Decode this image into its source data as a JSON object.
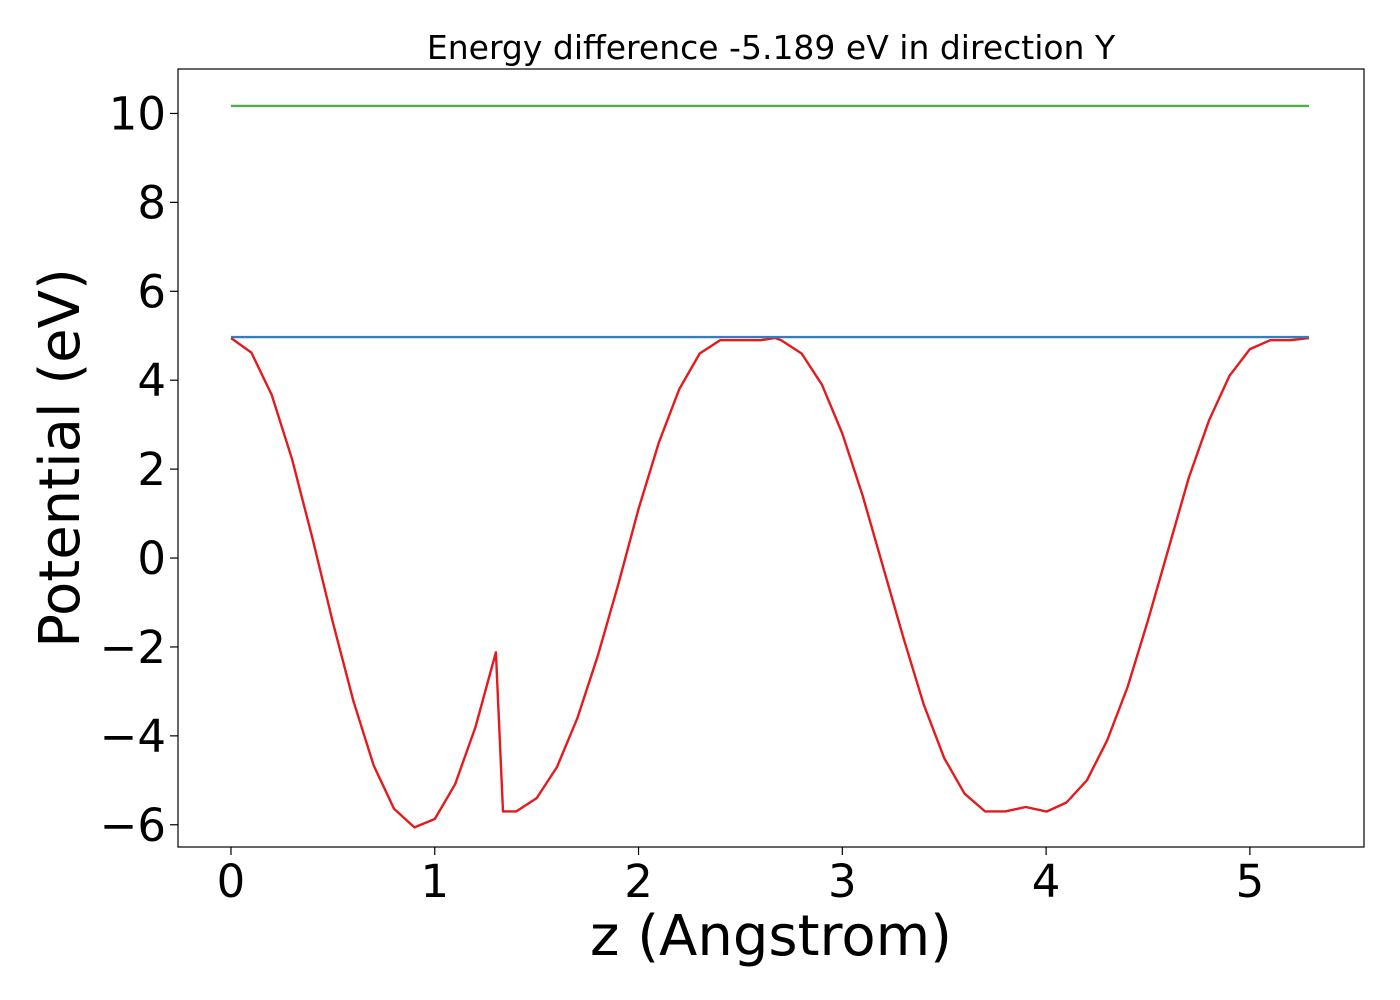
{
  "chart_data": {
    "type": "line",
    "title": "Energy difference -5.189 eV in direction Y",
    "xlabel": "z (Angstrom)",
    "ylabel": "Potential (eV)",
    "xlim": [
      -0.26,
      5.56
    ],
    "ylim": [
      -6.5,
      11.0
    ],
    "xticks": [
      0,
      1,
      2,
      3,
      4,
      5
    ],
    "xtick_labels": [
      "0",
      "1",
      "2",
      "3",
      "4",
      "5"
    ],
    "yticks": [
      -6,
      -4,
      -2,
      0,
      2,
      4,
      6,
      8,
      10
    ],
    "ytick_labels": [
      "−6",
      "−4",
      "−2",
      "0",
      "2",
      "4",
      "6",
      "8",
      "10"
    ],
    "grid": false,
    "legend": "none",
    "series": [
      {
        "color": "#e41a1c",
        "x": [
          0.0,
          0.1,
          0.2,
          0.3,
          0.4,
          0.5,
          0.6,
          0.7,
          0.8,
          0.9,
          1.0,
          1.1,
          1.2,
          1.3,
          1.335,
          1.4,
          1.5,
          1.6,
          1.7,
          1.8,
          1.9,
          2.0,
          2.1,
          2.2,
          2.3,
          2.4,
          2.5,
          2.6,
          2.67,
          2.7,
          2.8,
          2.9,
          3.0,
          3.1,
          3.2,
          3.3,
          3.4,
          3.5,
          3.6,
          3.7,
          3.8,
          3.9,
          4.0,
          4.005,
          4.1,
          4.2,
          4.3,
          4.4,
          4.5,
          4.6,
          4.7,
          4.8,
          4.9,
          5.0,
          5.1,
          5.2,
          5.29
        ],
        "y": [
          4.95,
          4.62,
          3.67,
          2.22,
          0.44,
          -1.45,
          -3.21,
          -4.66,
          -5.64,
          -6.06,
          -5.87,
          -5.09,
          -3.8,
          -2.12,
          -5.7,
          -5.7,
          -5.4,
          -4.7,
          -3.6,
          -2.2,
          -0.6,
          1.1,
          2.6,
          3.8,
          4.6,
          4.9,
          4.9,
          4.9,
          4.95,
          4.9,
          4.6,
          3.9,
          2.8,
          1.4,
          -0.2,
          -1.8,
          -3.3,
          -4.5,
          -5.3,
          -5.7,
          -5.7,
          -5.6,
          -5.7,
          -5.7,
          -5.5,
          -5.0,
          -4.1,
          -2.9,
          -1.4,
          0.2,
          1.8,
          3.1,
          4.1,
          4.7,
          4.9,
          4.9,
          4.95
        ]
      },
      {
        "color": "#377eb8",
        "x": [
          0.0,
          5.29
        ],
        "y": [
          4.97,
          4.97
        ]
      },
      {
        "color": "#4daf4a",
        "x": [
          0.0,
          5.29
        ],
        "y": [
          10.17,
          10.17
        ]
      }
    ]
  }
}
